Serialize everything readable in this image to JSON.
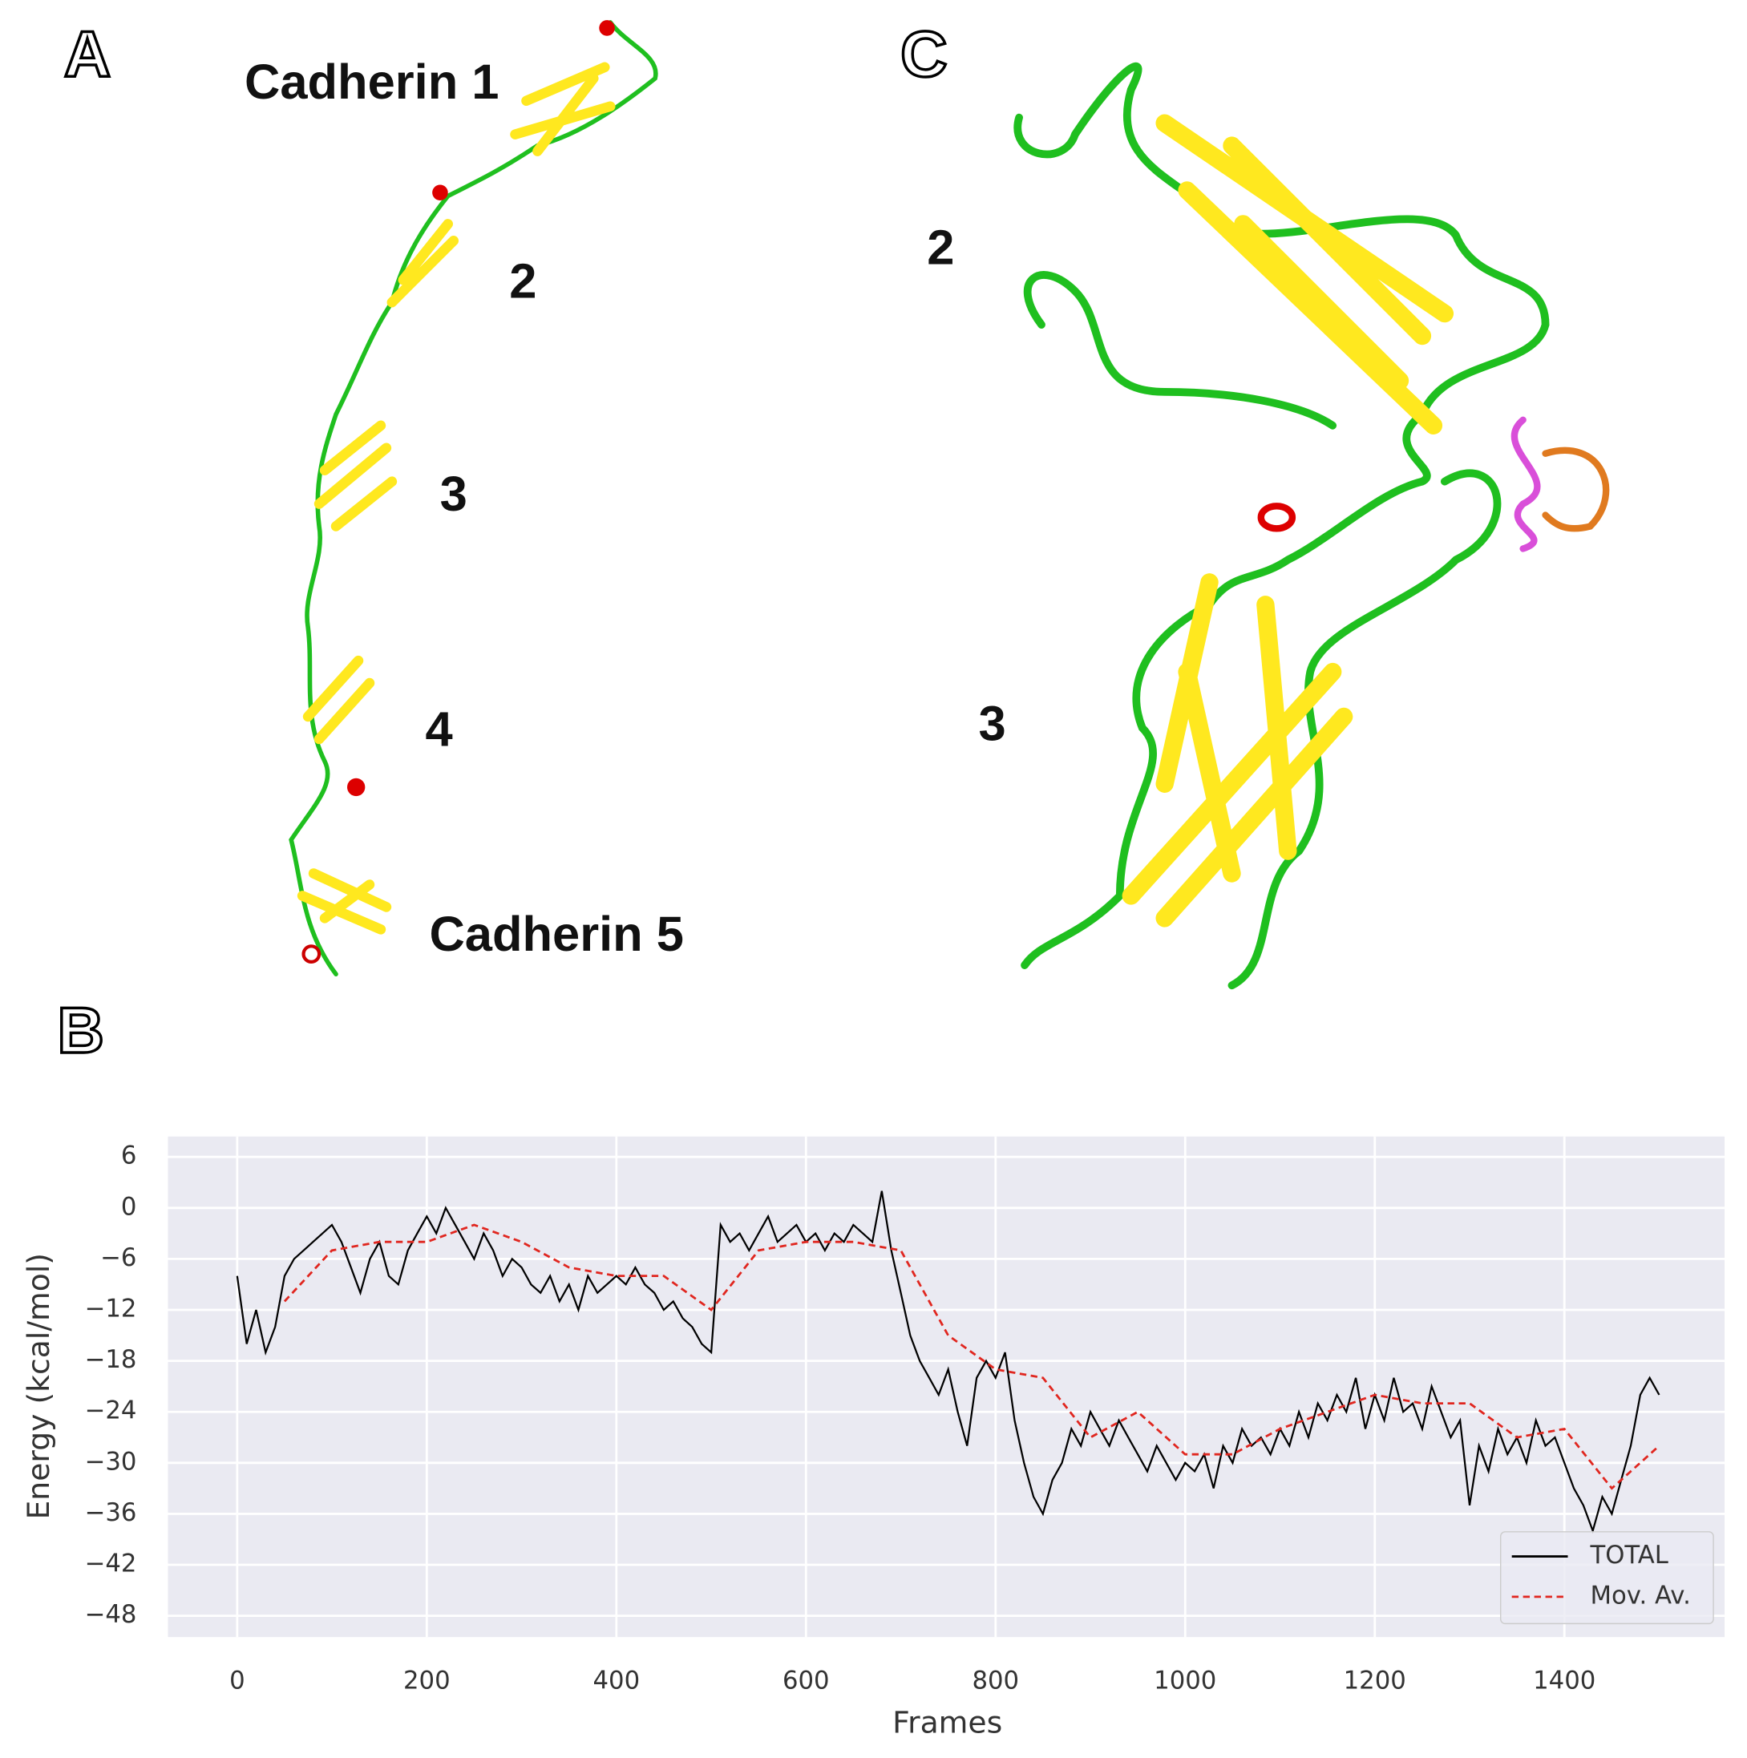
{
  "panel_labels": [
    "A",
    "B",
    "C"
  ],
  "panel_a_labels": [
    "Cadherin 1",
    "2",
    "3",
    "4",
    "Cadherin 5"
  ],
  "panel_c_labels": [
    "2",
    "3"
  ],
  "chart_data": {
    "type": "line",
    "xlabel": "Frames",
    "ylabel": "Energy (kcal/mol)",
    "xlim": [
      -73,
      1569
    ],
    "ylim": [
      -50.5,
      8.4
    ],
    "xticks": [
      0,
      200,
      400,
      600,
      800,
      1000,
      1200,
      1400
    ],
    "yticks": [
      6,
      0,
      {
        "value": -6,
        "label": "−6"
      },
      {
        "value": -12,
        "label": "−12"
      },
      {
        "value": -18,
        "label": "−18"
      },
      {
        "value": -24,
        "label": "−24"
      },
      {
        "value": -30,
        "label": "−30"
      },
      {
        "value": -36,
        "label": "−36"
      },
      {
        "value": -42,
        "label": "−42"
      },
      {
        "value": -48,
        "label": "−48"
      }
    ],
    "grid": true,
    "legend": "lower right",
    "series": [
      {
        "name": "TOTAL",
        "color": "#000000",
        "style": "solid",
        "x": [
          0,
          10,
          20,
          30,
          40,
          50,
          60,
          70,
          80,
          90,
          100,
          110,
          120,
          130,
          140,
          150,
          160,
          170,
          180,
          190,
          200,
          210,
          220,
          230,
          240,
          250,
          260,
          270,
          280,
          290,
          300,
          310,
          320,
          330,
          340,
          350,
          360,
          370,
          380,
          390,
          400,
          410,
          420,
          430,
          440,
          450,
          460,
          470,
          480,
          490,
          500,
          510,
          520,
          530,
          540,
          550,
          560,
          570,
          580,
          590,
          600,
          610,
          620,
          630,
          640,
          650,
          660,
          670,
          680,
          690,
          700,
          710,
          720,
          730,
          740,
          750,
          760,
          770,
          780,
          790,
          800,
          810,
          820,
          830,
          840,
          850,
          860,
          870,
          880,
          890,
          900,
          910,
          920,
          930,
          940,
          950,
          960,
          970,
          980,
          990,
          1000,
          1010,
          1020,
          1030,
          1040,
          1050,
          1060,
          1070,
          1080,
          1090,
          1100,
          1110,
          1120,
          1130,
          1140,
          1150,
          1160,
          1170,
          1180,
          1190,
          1200,
          1210,
          1220,
          1230,
          1240,
          1250,
          1260,
          1270,
          1280,
          1290,
          1300,
          1310,
          1320,
          1330,
          1340,
          1350,
          1360,
          1370,
          1380,
          1390,
          1400,
          1410,
          1420,
          1430,
          1440,
          1450,
          1460,
          1470,
          1480,
          1490,
          1500
        ],
        "values": [
          -8,
          -16,
          -12,
          -17,
          -14,
          -8,
          -6,
          -5,
          -4,
          -3,
          -2,
          -4,
          -7,
          -10,
          -6,
          -4,
          -8,
          -9,
          -5,
          -3,
          -1,
          -3,
          0,
          -2,
          -4,
          -6,
          -3,
          -5,
          -8,
          -6,
          -7,
          -9,
          -10,
          -8,
          -11,
          -9,
          -12,
          -8,
          -10,
          -9,
          -8,
          -9,
          -7,
          -9,
          -10,
          -12,
          -11,
          -13,
          -14,
          -16,
          -17,
          -2,
          -4,
          -3,
          -5,
          -3,
          -1,
          -4,
          -3,
          -2,
          -4,
          -3,
          -5,
          -3,
          -4,
          -2,
          -3,
          -4,
          2,
          -5,
          -10,
          -15,
          -18,
          -20,
          -22,
          -19,
          -24,
          -28,
          -20,
          -18,
          -20,
          -17,
          -25,
          -30,
          -34,
          -36,
          -32,
          -30,
          -26,
          -28,
          -24,
          -26,
          -28,
          -25,
          -27,
          -29,
          -31,
          -28,
          -30,
          -32,
          -30,
          -31,
          -29,
          -33,
          -28,
          -30,
          -26,
          -28,
          -27,
          -29,
          -26,
          -28,
          -24,
          -27,
          -23,
          -25,
          -22,
          -24,
          -20,
          -26,
          -22,
          -25,
          -20,
          -24,
          -23,
          -26,
          -21,
          -24,
          -27,
          -25,
          -35,
          -28,
          -31,
          -26,
          -29,
          -27,
          -30,
          -25,
          -28,
          -27,
          -30,
          -33,
          -35,
          -38,
          -34,
          -36,
          -32,
          -28,
          -22,
          -20,
          -22
        ]
      },
      {
        "name": "Mov. Av.",
        "color": "#e0261f",
        "style": "dashed",
        "x": [
          50,
          100,
          150,
          200,
          250,
          300,
          350,
          400,
          450,
          500,
          550,
          600,
          650,
          700,
          750,
          800,
          850,
          900,
          950,
          1000,
          1050,
          1100,
          1150,
          1200,
          1250,
          1300,
          1350,
          1400,
          1450,
          1500
        ],
        "values": [
          -11,
          -5,
          -4,
          -4,
          -2,
          -4,
          -7,
          -8,
          -8,
          -12,
          -5,
          -4,
          -4,
          -5,
          -15,
          -19,
          -20,
          -27,
          -24,
          -29,
          -29,
          -26,
          -24,
          -22,
          -23,
          -23,
          -27,
          -26,
          -33,
          -28
        ]
      }
    ]
  }
}
